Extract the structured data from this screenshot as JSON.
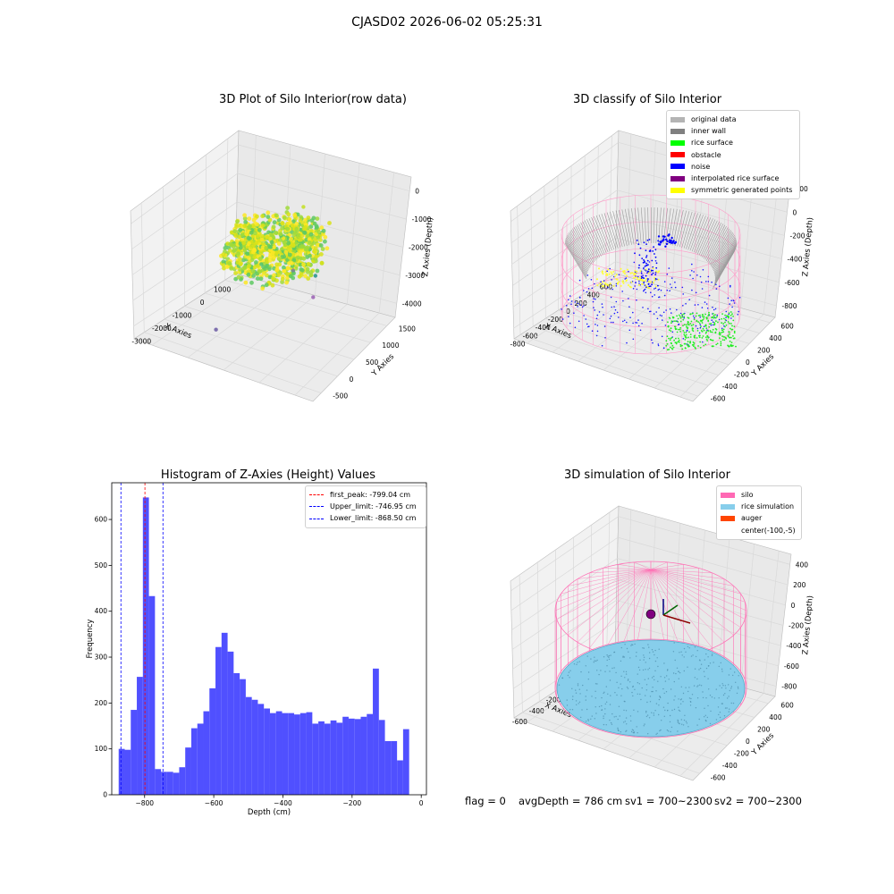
{
  "figure": {
    "title": "CJASD02 2026-06-02 05:25:31",
    "footer": {
      "flag": "flag = 0",
      "avg_depth": "avgDepth = 786 cm",
      "sv1": "sv1 = 700~2300",
      "sv2": "sv2 = 700~2300"
    }
  },
  "chart_data": [
    {
      "type": "scatter",
      "projection": "3d",
      "title": "3D Plot of Silo Interior(row data)",
      "xlabel": "X Axies",
      "ylabel": "Y Axies",
      "zlabel": "Z Axies (Depth)",
      "x_ticks": [
        "-3000",
        "-2000",
        "-1000",
        "0",
        "1000"
      ],
      "y_ticks": [
        "-500",
        "0",
        "500",
        "1000",
        "1500"
      ],
      "z_ticks": [
        "0",
        "-1000",
        "-2000",
        "-3000",
        "-4000"
      ],
      "colormap": "viridis",
      "outlier_points": [
        {
          "x": 1300,
          "y": 600,
          "z": -1600
        },
        {
          "x": -1700,
          "y": 400,
          "z": -1900
        },
        {
          "x": -500,
          "y": -100,
          "z": -2600
        },
        {
          "x": 400,
          "y": 500,
          "z": -3300
        },
        {
          "x": -2700,
          "y": 800,
          "z": -4000
        },
        {
          "x": -1000,
          "y": -200,
          "z": -3000
        }
      ],
      "cluster": {
        "x_range": [
          -900,
          100
        ],
        "y_range": [
          -300,
          500
        ],
        "z_range": [
          -1200,
          -2400
        ]
      }
    },
    {
      "type": "scatter",
      "projection": "3d",
      "title": "3D classify of Silo Interior",
      "xlabel": "X Axies",
      "ylabel": "Y Axies",
      "zlabel": "Z Axies (Depth)",
      "x_ticks": [
        "-800",
        "-600",
        "-400",
        "-200",
        "0",
        "200",
        "400",
        "600"
      ],
      "y_ticks": [
        "-600",
        "-400",
        "-200",
        "0",
        "200",
        "400",
        "600"
      ],
      "z_ticks": [
        "200",
        "0",
        "-200",
        "-400",
        "-600",
        "-800"
      ],
      "legend": [
        {
          "label": "original data",
          "color": "#b4b4b4"
        },
        {
          "label": "inner wall",
          "color": "#808080"
        },
        {
          "label": "rice surface",
          "color": "#00ff00"
        },
        {
          "label": "obstacle",
          "color": "#ff0000"
        },
        {
          "label": "noise",
          "color": "#0000ff"
        },
        {
          "label": "interpolated rice surface",
          "color": "#800080"
        },
        {
          "label": "symmetric generated points",
          "color": "#ffff00"
        }
      ]
    },
    {
      "type": "bar",
      "title": "Histogram of Z-Axies (Height) Values",
      "xlabel": "Depth (cm)",
      "ylabel": "Frequency",
      "xlim": [
        -895,
        15
      ],
      "ylim": [
        0,
        680
      ],
      "x_ticks": [
        -800,
        -600,
        -400,
        -200,
        0
      ],
      "y_ticks": [
        0,
        100,
        200,
        300,
        400,
        500,
        600
      ],
      "bar_color": "#5050ff",
      "bin_start": -875,
      "bin_width": 17.5,
      "values": [
        100,
        98,
        185,
        257,
        648,
        433,
        56,
        50,
        50,
        48,
        60,
        103,
        145,
        155,
        182,
        232,
        322,
        353,
        312,
        265,
        252,
        213,
        207,
        198,
        188,
        178,
        182,
        178,
        178,
        175,
        178,
        180,
        155,
        160,
        155,
        162,
        157,
        170,
        166,
        165,
        170,
        176,
        275,
        163,
        117,
        117,
        75,
        143
      ],
      "reference_lines": [
        {
          "label": "first_peak: -799.04 cm",
          "x": -799.04,
          "color": "#ff0000"
        },
        {
          "label": "Upper_limit: -746.95 cm",
          "x": -746.95,
          "color": "#0000ff"
        },
        {
          "label": "Lower_limit: -868.50 cm",
          "x": -868.5,
          "color": "#0000ff"
        }
      ]
    },
    {
      "type": "scatter",
      "projection": "3d",
      "title": "3D simulation of Silo Interior",
      "xlabel": "X Axies",
      "ylabel": "Y Axies",
      "zlabel": "Z Axies (Depth)",
      "x_ticks": [
        "-600",
        "-400",
        "-200",
        "0",
        "200",
        "400"
      ],
      "y_ticks": [
        "-600",
        "-400",
        "-200",
        "0",
        "200",
        "400",
        "600"
      ],
      "z_ticks": [
        "400",
        "200",
        "0",
        "-200",
        "-400",
        "-600",
        "-800"
      ],
      "legend": [
        {
          "label": "silo",
          "color": "#ff69b4"
        },
        {
          "label": "rice simulation",
          "color": "#87ceeb"
        },
        {
          "label": "auger",
          "color": "#ff4500"
        },
        {
          "label": "center(-100,-5)",
          "color": ""
        }
      ]
    }
  ]
}
